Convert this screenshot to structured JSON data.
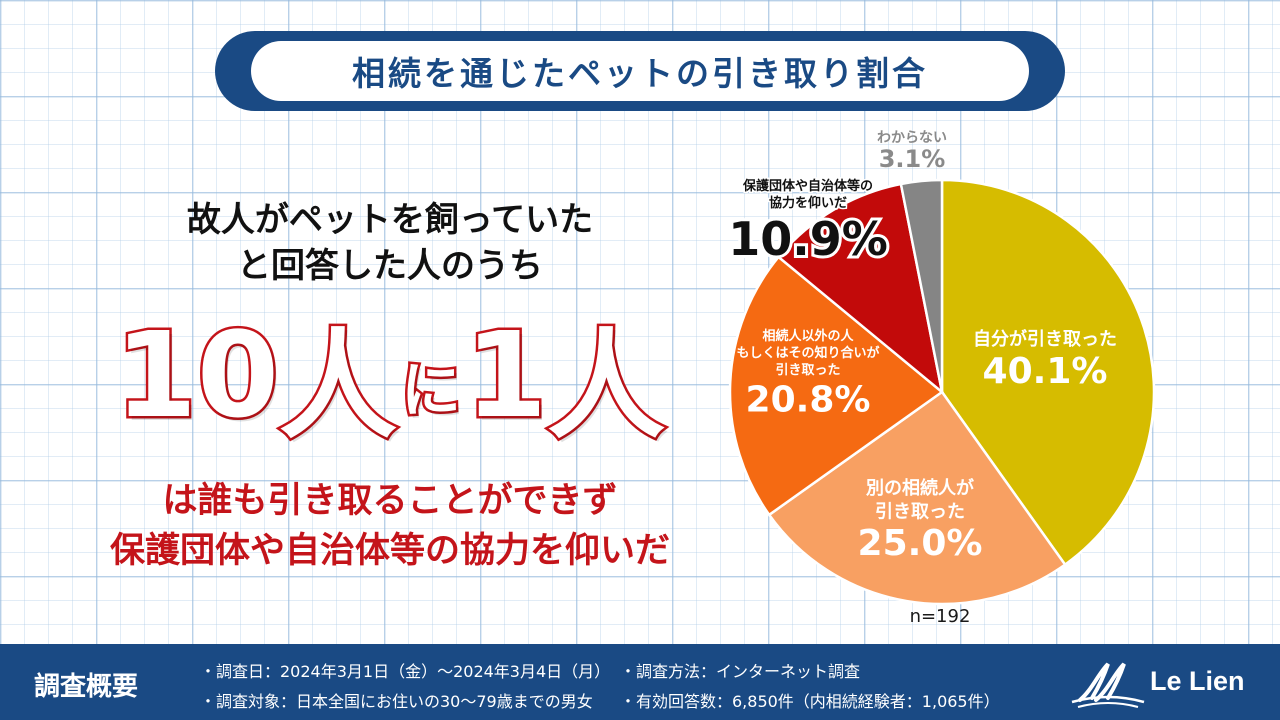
{
  "title": "相続を通じたペットの引き取り割合",
  "lead": {
    "line1": "故人がペットを飼っていた",
    "line2": "と回答した人のうち"
  },
  "highlight": {
    "num1": "10",
    "word1": "人",
    "particle": "に",
    "num2": "1",
    "word2": "人"
  },
  "conclusion": {
    "line1": "は誰も引き取ることができず",
    "line2": "保護団体や自治体等の協力を仰いだ"
  },
  "chart_data": {
    "type": "pie",
    "n_label": "n=192",
    "slices": [
      {
        "label_lines": [
          "自分が引き取った"
        ],
        "value": 40.1,
        "value_label": "40.1%",
        "color": "#d6bc00"
      },
      {
        "label_lines": [
          "別の相続人が",
          "引き取った"
        ],
        "value": 25.0,
        "value_label": "25.0%",
        "color": "#f8a062"
      },
      {
        "label_lines": [
          "相続人以外の人",
          "もしくはその知り合いが",
          "引き取った"
        ],
        "value": 20.8,
        "value_label": "20.8%",
        "color": "#f56a12"
      },
      {
        "label_lines": [
          "保護団体や自治体等の",
          "協力を仰いだ"
        ],
        "value": 10.9,
        "value_label": "10.9%",
        "color": "#c20a0a"
      },
      {
        "label_lines": [
          "わからない"
        ],
        "value": 3.1,
        "value_label": "3.1%",
        "color": "#858585"
      }
    ]
  },
  "footer": {
    "heading": "調査概要",
    "date": "・調査日：2024年3月1日（金）～2024年3月4日（月）",
    "target": "・調査対象：日本全国にお住いの30～79歳までの男女",
    "method": "・調査方法：インターネット調査",
    "responses": "・有効回答数：6,850件（内相続経験者：1,065件）",
    "logo_text": "Le Lien"
  }
}
